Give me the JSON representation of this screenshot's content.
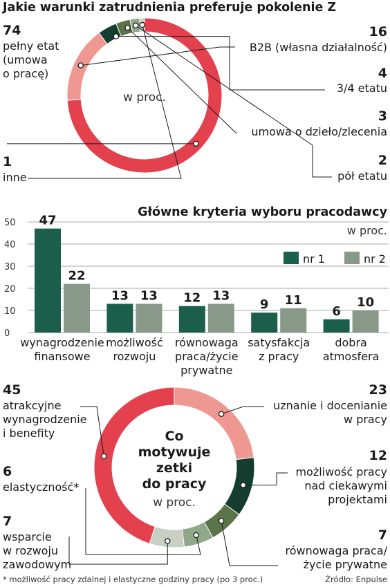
{
  "chart_data": [
    {
      "type": "pie",
      "title": "Jakie warunki zatrudnienia preferuje pokolenie Z",
      "center_label": "w proc.",
      "slices": [
        {
          "value": 74,
          "value_label": "74",
          "label_lines": [
            "pełny etat",
            "(umowa",
            "o pracę)"
          ],
          "color": "#e3414e"
        },
        {
          "value": 16,
          "value_label": "16",
          "label_lines": [
            "B2B (własna działalność)"
          ],
          "color": "#ef9891"
        },
        {
          "value": 4,
          "value_label": "4",
          "label_lines": [
            "3/4 etatu"
          ],
          "color": "#143d30"
        },
        {
          "value": 3,
          "value_label": "3",
          "label_lines": [
            "umowa o dzieło/zlecenia"
          ],
          "color": "#5a7348"
        },
        {
          "value": 2,
          "value_label": "2",
          "label_lines": [
            "pół etatu"
          ],
          "color": "#8fa88a"
        },
        {
          "value": 1,
          "value_label": "1",
          "label_lines": [
            "inne"
          ],
          "color": "#c7d0c3"
        }
      ]
    },
    {
      "type": "bar",
      "title": "Główne kryteria wyboru pracodawcy",
      "subtitle": "w proc.",
      "categories": [
        [
          "wynagrodzenie",
          "finansowe"
        ],
        [
          "możliwość",
          "rozwoju"
        ],
        [
          "równowaga",
          "praca/życie",
          "prywatne"
        ],
        [
          "satysfakcja",
          "z pracy"
        ],
        [
          "dobra",
          "atmosfera"
        ]
      ],
      "series": [
        {
          "name": "nr 1",
          "values": [
            47,
            13,
            12,
            9,
            6
          ],
          "color": "#1b5e4c"
        },
        {
          "name": "nr 2",
          "values": [
            22,
            13,
            13,
            11,
            10
          ],
          "color": "#88998a"
        }
      ],
      "ylim": [
        0,
        50
      ],
      "yticks": [
        0,
        10,
        20,
        30,
        40,
        50
      ],
      "grid": true,
      "legend": "top-right"
    },
    {
      "type": "pie",
      "title": "",
      "center_label_lines": [
        "Co",
        "motywuje",
        "zetki",
        "do pracy"
      ],
      "center_sub": "w proc.",
      "slices": [
        {
          "value": 23,
          "value_label": "23",
          "label_lines": [
            "uznanie i docenianie",
            "w pracy"
          ],
          "color": "#ef9891"
        },
        {
          "value": 12,
          "value_label": "12",
          "label_lines": [
            "możliwość pracy",
            "nad ciekawymi",
            "projektami"
          ],
          "color": "#143d30"
        },
        {
          "value": 7,
          "value_label": "7",
          "label_lines": [
            "równowaga praca/",
            "życie prywatne"
          ],
          "color": "#5a7348"
        },
        {
          "value": 6,
          "value_label": "6",
          "label_lines": [
            "elastyczność*"
          ],
          "color": "#8fa88a"
        },
        {
          "value": 7,
          "value_label": "7",
          "label_lines": [
            "wsparcie",
            "w rozwoju",
            "zawodowym"
          ],
          "color": "#c7d0c3"
        },
        {
          "value": 45,
          "value_label": "45",
          "label_lines": [
            "atrakcyjne",
            "wynagrodzenie",
            "i benefity"
          ],
          "color": "#e3414e"
        }
      ]
    }
  ],
  "footnote": "* możliwość pracy zdalnej i elastyczne godziny pracy (po 3 proc.)",
  "source": "Źródło: Enpulse"
}
